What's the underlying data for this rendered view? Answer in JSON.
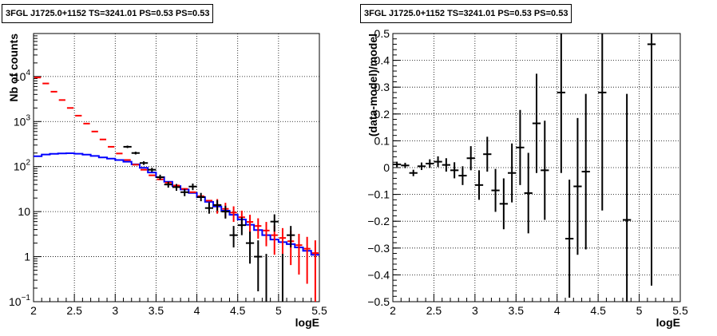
{
  "chart_data": [
    {
      "type": "scatter",
      "title": "3FGL J1725.0+1152 TS=3241.01 PS=0.53 PS=0.53",
      "xlabel": "logE",
      "ylabel": "Nb of counts",
      "xlim": [
        2,
        5.5
      ],
      "ylim": [
        0.1,
        90000
      ],
      "yscale": "log",
      "grid": true,
      "xticks": [
        "2",
        "2.5",
        "3",
        "3.5",
        "4",
        "4.5",
        "5",
        "5.5"
      ],
      "yticks": [
        {
          "value": 0.1,
          "label": "10⁻¹"
        },
        {
          "value": 1,
          "label": "1"
        },
        {
          "value": 10,
          "label": "10"
        },
        {
          "value": 100,
          "label": "10²"
        },
        {
          "value": 1000,
          "label": "10³"
        },
        {
          "value": 10000,
          "label": "10⁴"
        }
      ],
      "bin_edges": [
        2.0,
        2.1,
        2.2,
        2.3,
        2.4,
        2.5,
        2.6,
        2.7,
        2.8,
        2.9,
        3.0,
        3.1,
        3.2,
        3.3,
        3.4,
        3.5,
        3.6,
        3.7,
        3.8,
        3.9,
        4.0,
        4.1,
        4.2,
        4.3,
        4.4,
        4.5,
        4.6,
        4.7,
        4.8,
        4.9,
        5.0,
        5.1,
        5.2,
        5.3,
        5.4,
        5.5
      ],
      "series": [
        {
          "color": "#0000ff",
          "style": "step",
          "values": [
            170,
            185,
            192,
            196,
            198,
            193,
            184,
            172,
            160,
            150,
            140,
            128,
            112,
            94,
            74,
            58,
            46,
            37,
            31,
            26,
            21,
            16.5,
            13,
            10.5,
            8.5,
            6.7,
            5.1,
            3.9,
            3.0,
            2.4,
            2.1,
            1.9,
            1.6,
            1.35,
            1.1
          ]
        },
        {
          "color": "#ff0000",
          "style": "errorbar",
          "values": [
            9500,
            7000,
            4600,
            3000,
            2000,
            1350,
            900,
            600,
            400,
            275,
            195,
            140,
            110,
            85,
            64,
            52,
            44,
            38,
            32,
            27,
            22,
            17.5,
            14,
            11.5,
            9.5,
            7.5,
            5.9,
            4.8,
            3.8,
            3.0,
            2.6,
            2.2,
            1.8,
            1.5,
            1.2
          ],
          "errors": [
            0,
            0,
            0,
            0,
            0,
            0,
            0,
            0,
            0,
            0,
            0,
            0,
            0,
            0,
            0,
            0,
            0,
            0,
            0,
            0,
            0,
            0,
            5,
            4.2,
            3.6,
            3.0,
            2.6,
            2.3,
            2.1,
            1.9,
            1.7,
            1.55,
            1.4,
            1.25,
            1.1
          ]
        },
        {
          "color": "#000000",
          "style": "errorbar",
          "x": [
            3.15,
            3.25,
            3.35,
            3.45,
            3.55,
            3.65,
            3.75,
            3.85,
            3.95,
            4.05,
            4.15,
            4.25,
            4.35,
            4.45,
            4.55,
            4.65,
            4.75,
            4.85,
            4.95,
            5.05,
            5.15
          ],
          "values": [
            275,
            200,
            120,
            85,
            58,
            40,
            35,
            27,
            36,
            21,
            12,
            14,
            10,
            3,
            5,
            2,
            1,
            0,
            6,
            0,
            3
          ],
          "low": [
            258,
            186,
            109,
            76,
            51,
            34,
            29,
            22,
            30,
            17,
            9,
            10.5,
            7,
            1.6,
            3,
            0.7,
            0.17,
            0,
            3.6,
            0,
            1.6
          ],
          "high": [
            292,
            214,
            131,
            94,
            66,
            46,
            41,
            32,
            42,
            26,
            16,
            18,
            13.5,
            4.8,
            7.5,
            3.6,
            2.3,
            1.15,
            8.7,
            1.15,
            4.8
          ]
        }
      ]
    },
    {
      "type": "scatter",
      "title": "3FGL J1725.0+1152 TS=3241.01 PS=0.53 PS=0.53",
      "xlabel": "logE",
      "ylabel": "(data-model)/model",
      "xlim": [
        2,
        5.5
      ],
      "ylim": [
        -0.5,
        0.5
      ],
      "grid": true,
      "xticks": [
        "2",
        "2.5",
        "3",
        "3.5",
        "4",
        "4.5",
        "5",
        "5.5"
      ],
      "yticks": [
        "−0.5",
        "−0.4",
        "−0.3",
        "−0.2",
        "−0.1",
        "0",
        "0.1",
        "0.2",
        "0.3",
        "0.4",
        "0.5"
      ],
      "ytick_values": [
        -0.5,
        -0.4,
        -0.3,
        -0.2,
        -0.1,
        0,
        0.1,
        0.2,
        0.3,
        0.4,
        0.5
      ],
      "series": [
        {
          "color": "#000000",
          "style": "errorbar",
          "x": [
            2.05,
            2.15,
            2.25,
            2.35,
            2.45,
            2.55,
            2.65,
            2.75,
            2.85,
            2.95,
            3.05,
            3.15,
            3.25,
            3.35,
            3.45,
            3.55,
            3.65,
            3.75,
            3.85,
            4.05,
            4.15,
            4.25,
            4.35,
            4.55,
            4.85,
            5.15
          ],
          "values": [
            0.012,
            0.008,
            -0.02,
            0.005,
            0.015,
            0.022,
            0.01,
            -0.01,
            -0.03,
            0.035,
            -0.065,
            0.05,
            -0.085,
            -0.135,
            -0.02,
            0.075,
            -0.095,
            0.165,
            -0.01,
            0.28,
            -0.265,
            -0.07,
            -0.015,
            0.28,
            -0.195,
            0.46
          ],
          "errors": [
            0.01,
            0.01,
            0.012,
            0.014,
            0.016,
            0.02,
            0.025,
            0.03,
            0.035,
            0.045,
            0.055,
            0.065,
            0.08,
            0.095,
            0.11,
            0.14,
            0.15,
            0.185,
            0.185,
            0.3,
            0.22,
            0.255,
            0.29,
            0.44,
            0.47,
            0.9
          ]
        }
      ]
    }
  ]
}
